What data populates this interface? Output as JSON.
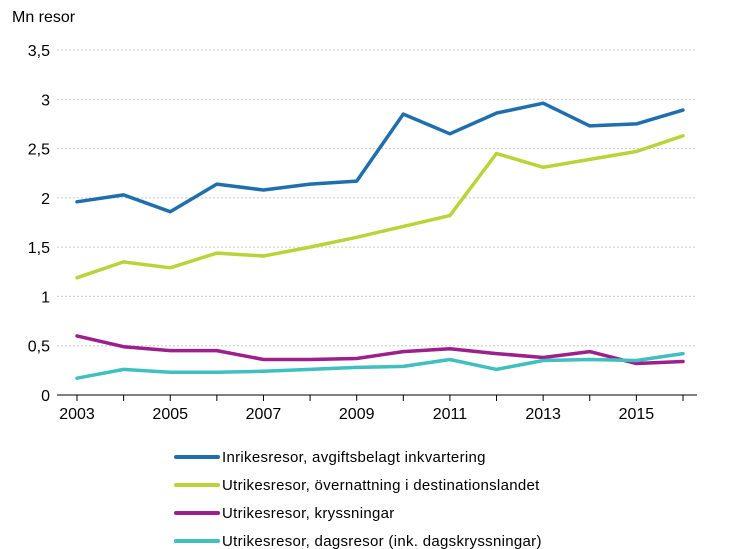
{
  "chart_data": {
    "type": "line",
    "title": "",
    "ylabel": "Mn resor",
    "xlabel": "",
    "x": [
      2003,
      2004,
      2005,
      2006,
      2007,
      2008,
      2009,
      2010,
      2011,
      2012,
      2013,
      2014,
      2015,
      2016
    ],
    "xtick_labels": [
      "2003",
      "2005",
      "2007",
      "2009",
      "2011",
      "2013",
      "2015"
    ],
    "ylim": [
      0,
      3.5
    ],
    "ytick_labels": [
      "0",
      "0,5",
      "1",
      "1,5",
      "2",
      "2,5",
      "3",
      "3,5"
    ],
    "grid": true,
    "legend_position": "bottom",
    "series": [
      {
        "name": "Inrikesresor, avgiftsbelagt inkvartering",
        "color": "#1f6fae",
        "values": [
          1.96,
          2.03,
          1.86,
          2.14,
          2.08,
          2.14,
          2.17,
          2.85,
          2.65,
          2.86,
          2.96,
          2.73,
          2.75,
          2.89
        ]
      },
      {
        "name": "Utrikesresor, övernattning i destinationslandet",
        "color": "#b9d339",
        "values": [
          1.19,
          1.35,
          1.29,
          1.44,
          1.41,
          1.5,
          1.6,
          1.71,
          1.82,
          2.45,
          2.31,
          2.39,
          2.47,
          2.63
        ]
      },
      {
        "name": "Utrikesresor, kryssningar",
        "color": "#9c1f8c",
        "values": [
          0.6,
          0.49,
          0.45,
          0.45,
          0.36,
          0.36,
          0.37,
          0.44,
          0.47,
          0.42,
          0.38,
          0.44,
          0.32,
          0.34
        ]
      },
      {
        "name": "Utrikesresor, dagsresor (ink. dagskryssningar)",
        "color": "#3fbfbf",
        "values": [
          0.17,
          0.26,
          0.23,
          0.23,
          0.24,
          0.26,
          0.28,
          0.29,
          0.36,
          0.26,
          0.35,
          0.36,
          0.35,
          0.42
        ]
      }
    ]
  }
}
